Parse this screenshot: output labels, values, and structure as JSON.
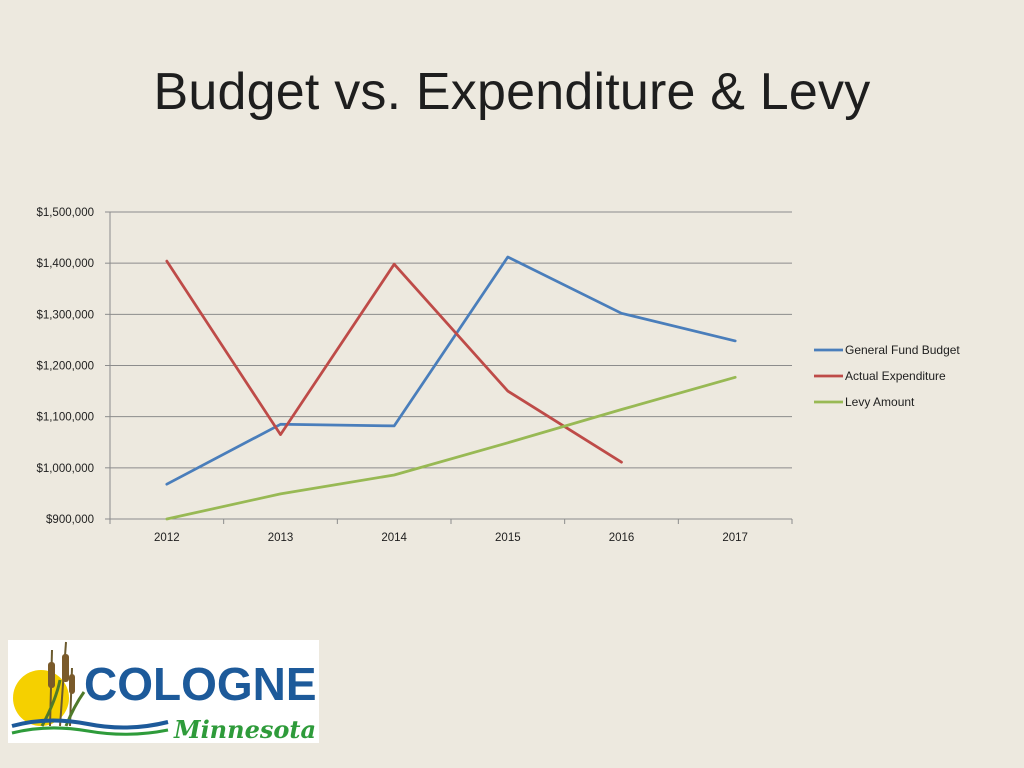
{
  "slide": {
    "title": "Budget vs. Expenditure & Levy"
  },
  "chart_data": {
    "type": "line",
    "title": "",
    "xlabel": "",
    "ylabel": "",
    "categories": [
      "2012",
      "2013",
      "2014",
      "2015",
      "2016",
      "2017"
    ],
    "ylim": [
      900000,
      1500000
    ],
    "y_ticks": [
      900000,
      1000000,
      1100000,
      1200000,
      1300000,
      1400000,
      1500000
    ],
    "y_tick_labels": [
      "$900,000",
      "$1,000,000",
      "$1,100,000",
      "$1,200,000",
      "$1,300,000",
      "$1,400,000",
      "$1,500,000"
    ],
    "grid": true,
    "legend_position": "right",
    "series": [
      {
        "name": "General Fund Budget",
        "color": "#4a7ebb",
        "values": [
          968000,
          1085000,
          1082000,
          1412000,
          1302000,
          1248000
        ]
      },
      {
        "name": "Actual Expenditure",
        "color": "#be4b48",
        "values": [
          1404000,
          1065000,
          1398000,
          1150000,
          1011000,
          null
        ]
      },
      {
        "name": "Levy Amount",
        "color": "#98b954",
        "values": [
          900000,
          949000,
          986000,
          1049000,
          1114000,
          1177000
        ]
      }
    ]
  },
  "logo": {
    "word": "COLOGNE",
    "sub": "Minnesota",
    "colors": {
      "blue": "#1d5a9a",
      "green": "#2e9b3a",
      "sun": "#f5d000"
    }
  }
}
